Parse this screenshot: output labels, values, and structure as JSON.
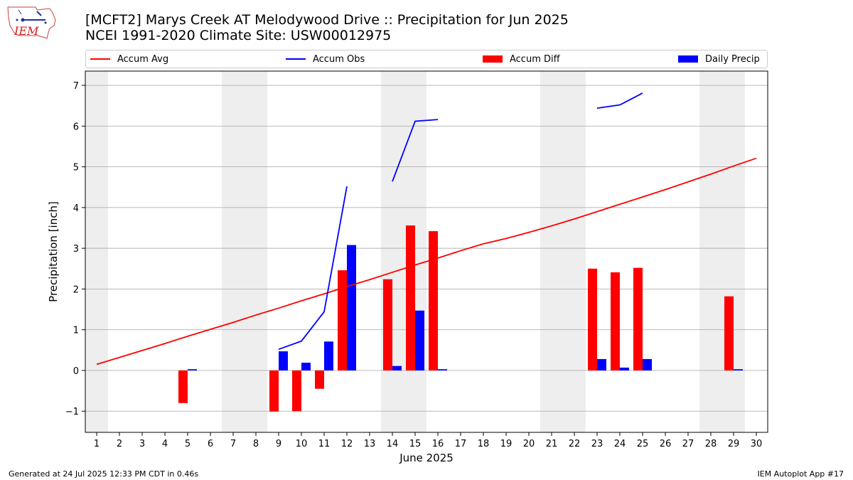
{
  "header": {
    "title_line1": "[MCFT2] Marys Creek  AT Melodywood Drive :: Precipitation for Jun 2025",
    "title_line2": "NCEI 1991-2020 Climate Site: USW00012975",
    "logo_text": "IEM"
  },
  "legend": {
    "items": [
      {
        "label": "Accum Avg",
        "kind": "line",
        "color": "#ff0000"
      },
      {
        "label": "Accum Obs",
        "kind": "line",
        "color": "#0000ff"
      },
      {
        "label": "Accum Diff",
        "kind": "box",
        "color": "#ff0000"
      },
      {
        "label": "Daily Precip",
        "kind": "box",
        "color": "#0000ff"
      }
    ]
  },
  "footer": {
    "left": "Generated at 24 Jul 2025 12:33 PM CDT in 0.46s",
    "right": "IEM Autoplot App #17"
  },
  "colors": {
    "avg": "#ff0000",
    "obs": "#0000ff",
    "diff": "#ff0000",
    "daily": "#0000ff",
    "weekend_shade": "#eeeeee",
    "grid": "#b0b0b0"
  },
  "chart_data": {
    "type": "bar",
    "xlabel": "June 2025",
    "ylabel": "Precipitation [inch]",
    "xlim": [
      0.5,
      30.5
    ],
    "ylim": [
      -1.52,
      7.35
    ],
    "x": [
      1,
      2,
      3,
      4,
      5,
      6,
      7,
      8,
      9,
      10,
      11,
      12,
      13,
      14,
      15,
      16,
      17,
      18,
      19,
      20,
      21,
      22,
      23,
      24,
      25,
      26,
      27,
      28,
      29,
      30
    ],
    "x_tick_labels": [
      "1",
      "2",
      "3",
      "4",
      "5",
      "6",
      "7",
      "8",
      "9",
      "10",
      "11",
      "12",
      "13",
      "14",
      "15",
      "16",
      "17",
      "18",
      "19",
      "20",
      "21",
      "22",
      "23",
      "24",
      "25",
      "26",
      "27",
      "28",
      "29",
      "30"
    ],
    "y_ticks": [
      -1,
      0,
      1,
      2,
      3,
      4,
      5,
      6,
      7
    ],
    "y_tick_labels": [
      "−1",
      "0",
      "1",
      "2",
      "3",
      "4",
      "5",
      "6",
      "7"
    ],
    "grid": "horizontal",
    "legend_position": "top",
    "weekend_shaded_spans": [
      [
        0.5,
        1.5
      ],
      [
        6.5,
        8.5
      ],
      [
        13.5,
        15.5
      ],
      [
        20.5,
        22.5
      ],
      [
        27.5,
        29.5
      ]
    ],
    "series": [
      {
        "name": "Accum Avg",
        "kind": "line",
        "values": [
          0.15,
          0.32,
          0.49,
          0.66,
          0.84,
          1.01,
          1.18,
          1.36,
          1.53,
          1.71,
          1.88,
          2.06,
          2.23,
          2.41,
          2.59,
          2.76,
          2.94,
          3.11,
          3.24,
          3.39,
          3.55,
          3.72,
          3.9,
          4.08,
          4.26,
          4.44,
          4.63,
          4.82,
          5.02,
          5.21
        ]
      },
      {
        "name": "Accum Obs",
        "kind": "line",
        "segments": [
          {
            "x": [
              9,
              10,
              11,
              12
            ],
            "y": [
              0.52,
              0.72,
              1.44,
              4.52
            ]
          },
          {
            "x": [
              14,
              15,
              16
            ],
            "y": [
              4.64,
              6.12,
              6.16
            ]
          },
          {
            "x": [
              23,
              24,
              25
            ],
            "y": [
              6.44,
              6.52,
              6.81
            ]
          }
        ]
      },
      {
        "name": "Accum Diff",
        "kind": "bar",
        "values": [
          null,
          null,
          null,
          null,
          -0.8,
          null,
          null,
          null,
          -1.01,
          -1.0,
          -0.45,
          2.46,
          null,
          2.24,
          3.56,
          3.42,
          null,
          null,
          null,
          null,
          null,
          null,
          2.5,
          2.41,
          2.52,
          null,
          null,
          null,
          1.82,
          null
        ]
      },
      {
        "name": "Daily Precip",
        "kind": "bar",
        "values": [
          null,
          null,
          null,
          null,
          0.03,
          null,
          null,
          null,
          0.47,
          0.19,
          0.71,
          3.08,
          null,
          0.11,
          1.47,
          0.03,
          null,
          null,
          null,
          null,
          null,
          null,
          0.28,
          0.07,
          0.28,
          null,
          null,
          null,
          0.03,
          null
        ]
      }
    ]
  }
}
